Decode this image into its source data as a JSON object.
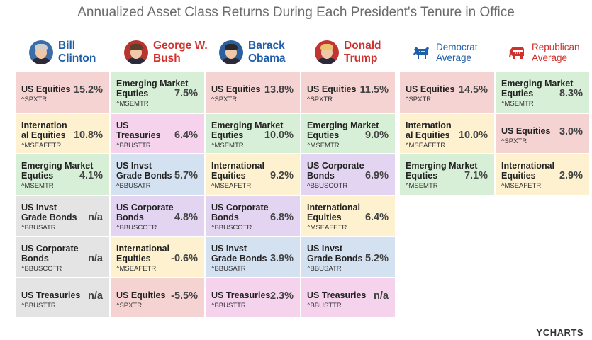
{
  "title": "Annualized Asset Class Returns During Each President's Tenure in Office",
  "presidents": [
    {
      "line1": "Bill",
      "line2": "Clinton",
      "party": "dem"
    },
    {
      "line1": "George W.",
      "line2": "Bush",
      "party": "rep"
    },
    {
      "line1": "Barack",
      "line2": "Obama",
      "party": "dem"
    },
    {
      "line1": "Donald",
      "line2": "Trump",
      "party": "rep"
    }
  ],
  "averages": [
    {
      "line1": "Democrat",
      "line2": "Average",
      "party": "dem",
      "icon": "donkey-icon"
    },
    {
      "line1": "Republican",
      "line2": "Average",
      "party": "rep",
      "icon": "elephant-icon"
    }
  ],
  "colors": {
    "US Equities": "#f6d3d3",
    "International Equities": "#fdf1cf",
    "Emerging Market Equties": "#d8efd7",
    "US Invst Grade Bonds": "#d3e1f1",
    "US Corporate Bonds": "#e3d5f1",
    "US Treasuries": "#f5d3ec",
    "n/a": "#e4e4e4",
    "dem": "#1f5ea8",
    "rep": "#d0312d"
  },
  "chart_data": {
    "type": "table",
    "title": "Annualized Asset Class Returns During Each President's Tenure in Office",
    "columns": [
      "Bill Clinton",
      "George W. Bush",
      "Barack Obama",
      "Donald Trump",
      "Democrat Average",
      "Republican Average"
    ],
    "rows": [
      [
        {
          "name": [
            "US Equities"
          ],
          "ticker": "^SPXTR",
          "value": "15.2%",
          "asset": "US Equities"
        },
        {
          "name": [
            "International",
            "al Equities"
          ],
          "ticker": "^MSEAFETR",
          "value": "10.8%",
          "asset": "International Equities"
        },
        {
          "name": [
            "Emerging Market",
            "Equties"
          ],
          "ticker": "^MSEMTR",
          "value": "4.1%",
          "asset": "Emerging Market Equties"
        },
        {
          "name": [
            "US Invst",
            "Grade Bonds"
          ],
          "ticker": "^BBUSATR",
          "value": "n/a",
          "asset": "n/a"
        },
        {
          "name": [
            "US Corporate",
            "Bonds"
          ],
          "ticker": "^BBUSCOTR",
          "value": "n/a",
          "asset": "n/a"
        },
        {
          "name": [
            "US Treasuries"
          ],
          "ticker": "^BBUSTTR",
          "value": "n/a",
          "asset": "n/a"
        }
      ],
      [
        {
          "name": [
            "Emerging Market",
            "Equties"
          ],
          "ticker": "^MSEMTR",
          "value": "7.5%",
          "asset": "Emerging Market Equties"
        },
        {
          "name": [
            "US",
            "Treasuries"
          ],
          "ticker": "^BBUSTTR",
          "value": "6.4%",
          "asset": "US Treasuries"
        },
        {
          "name": [
            "US Invst",
            "Grade Bonds"
          ],
          "ticker": "^BBUSATR",
          "value": "5.7%",
          "asset": "US Invst Grade Bonds"
        },
        {
          "name": [
            "US Corporate",
            "Bonds"
          ],
          "ticker": "^BBUSCOTR",
          "value": "4.8%",
          "asset": "US Corporate Bonds"
        },
        {
          "name": [
            "International",
            "Equities"
          ],
          "ticker": "^MSEAFETR",
          "value": "-0.6%",
          "asset": "International Equities"
        },
        {
          "name": [
            "US Equities"
          ],
          "ticker": "^SPXTR",
          "value": "-5.5%",
          "asset": "US Equities"
        }
      ],
      [
        {
          "name": [
            "US Equities"
          ],
          "ticker": "^SPXTR",
          "value": "13.8%",
          "asset": "US Equities"
        },
        {
          "name": [
            "Emerging Market",
            "Equties"
          ],
          "ticker": "^MSEMTR",
          "value": "10.0%",
          "asset": "Emerging Market Equties"
        },
        {
          "name": [
            "International",
            "Equities"
          ],
          "ticker": "^MSEAFETR",
          "value": "9.2%",
          "asset": "International Equities"
        },
        {
          "name": [
            "US Corporate",
            "Bonds"
          ],
          "ticker": "^BBUSCOTR",
          "value": "6.8%",
          "asset": "US Corporate Bonds"
        },
        {
          "name": [
            "US Invst",
            "Grade Bonds"
          ],
          "ticker": "^BBUSATR",
          "value": "3.9%",
          "asset": "US Invst Grade Bonds"
        },
        {
          "name": [
            "US Treasuries"
          ],
          "ticker": "^BBUSTTR",
          "value": "2.3%",
          "asset": "US Treasuries"
        }
      ],
      [
        {
          "name": [
            "US Equities"
          ],
          "ticker": "^SPXTR",
          "value": "11.5%",
          "asset": "US Equities"
        },
        {
          "name": [
            "Emerging Market",
            "Equties"
          ],
          "ticker": "^MSEMTR",
          "value": "9.0%",
          "asset": "Emerging Market Equties"
        },
        {
          "name": [
            "US Corporate",
            "Bonds"
          ],
          "ticker": "^BBUSCOTR",
          "value": "6.9%",
          "asset": "US Corporate Bonds"
        },
        {
          "name": [
            "International",
            "Equities"
          ],
          "ticker": "^MSEAFETR",
          "value": "6.4%",
          "asset": "International Equities"
        },
        {
          "name": [
            "US Invst",
            "Grade Bonds"
          ],
          "ticker": "^BBUSATR",
          "value": "5.2%",
          "asset": "US Invst Grade Bonds"
        },
        {
          "name": [
            "US Treasuries"
          ],
          "ticker": "^BBUSTTR",
          "value": "n/a",
          "asset": "US Treasuries"
        }
      ],
      [
        {
          "name": [
            "US Equities"
          ],
          "ticker": "^SPXTR",
          "value": "14.5%",
          "asset": "US Equities"
        },
        {
          "name": [
            "Internation",
            "al Equities"
          ],
          "ticker": "^MSEAFETR",
          "value": "10.0%",
          "asset": "International Equities"
        },
        {
          "name": [
            "Emerging Market",
            "Equties"
          ],
          "ticker": "^MSEMTR",
          "value": "7.1%",
          "asset": "Emerging Market Equties"
        }
      ],
      [
        {
          "name": [
            "Emerging Market",
            "Equties"
          ],
          "ticker": "^MSEMTR",
          "value": "8.3%",
          "asset": "Emerging Market Equties"
        },
        {
          "name": [
            "US Equities"
          ],
          "ticker": "^SPXTR",
          "value": "3.0%",
          "asset": "US Equities"
        },
        {
          "name": [
            "International",
            "Equities"
          ],
          "ticker": "^MSEAFETR",
          "value": "2.9%",
          "asset": "International Equities"
        }
      ]
    ]
  },
  "brand": "YCHARTS"
}
